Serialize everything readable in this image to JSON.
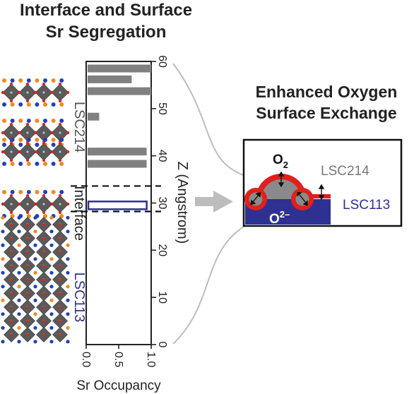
{
  "figure": {
    "left_title": [
      "Interface and Surface",
      "Sr Segregation"
    ],
    "right_title": [
      "Enhanced Oxygen",
      "Surface Exchange"
    ]
  },
  "structure": {
    "region_labels": {
      "top": "LSC214",
      "middle": "Interface",
      "bottom": "LSC113"
    },
    "colors": {
      "octahedron": "#5a5a5a",
      "oxygen": "#e0201b",
      "a_site_orange": "#f08a1c",
      "a_site_blue": "#2340b8"
    }
  },
  "chart_data": {
    "type": "bar",
    "orientation": "horizontal",
    "xlabel": "Sr Occupancy",
    "ylabel": "Z (Angstrom)",
    "xlim": [
      0,
      1.0
    ],
    "ylim": [
      0,
      60
    ],
    "xticks": [
      "0.0",
      "0.5",
      "1.0"
    ],
    "yticks": [
      "0",
      "10",
      "20",
      "30",
      "40",
      "50",
      "60"
    ],
    "interface_lines_z": [
      28.2,
      33.6
    ],
    "series": [
      {
        "region": "LSC214",
        "color": "#808080",
        "bars": [
          {
            "z": 58.5,
            "value": 1.0
          },
          {
            "z": 56.2,
            "value": 0.7
          },
          {
            "z": 53.7,
            "value": 1.0
          },
          {
            "z": 48.3,
            "value": 0.2
          },
          {
            "z": 40.9,
            "value": 0.93
          },
          {
            "z": 38.3,
            "value": 0.93
          }
        ]
      },
      {
        "region": "Interface",
        "color": "#2e3192",
        "style": "outline",
        "bars": [
          {
            "z": 29.5,
            "value": 0.92
          }
        ]
      }
    ]
  },
  "schematic": {
    "molecule_label": "O",
    "molecule_subscript": "2",
    "ion_label": "O",
    "ion_superscript": "2–",
    "top_layer_label": "LSC214",
    "bottom_layer_label": "LSC113",
    "colors": {
      "lsc113": "#2e3192",
      "lsc214_dome": "#8a8a8a",
      "sr_rich": "#e0201b",
      "arrow": "#bdbdbd"
    }
  }
}
